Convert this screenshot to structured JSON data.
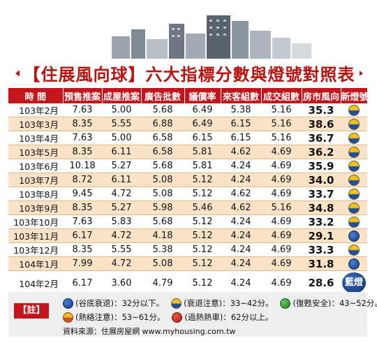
{
  "banner": {
    "title": "【住展風向球】六大指標分數與燈號對照表"
  },
  "chart_data": {
    "type": "table",
    "columns": [
      "時 間",
      "預售推案",
      "成屋推案",
      "廣告批數",
      "議價率",
      "來客組數",
      "成交組數",
      "房市風向",
      "新燈號"
    ],
    "rows": [
      {
        "date": "103年2月",
        "values": [
          "7.63",
          "5.00",
          "5.68",
          "6.49",
          "5.38",
          "5.16",
          "35.3"
        ],
        "light": "yellow-blue"
      },
      {
        "date": "103年3月",
        "values": [
          "8.35",
          "5.55",
          "6.88",
          "6.49",
          "6.15",
          "5.16",
          "38.6"
        ],
        "light": "yellow-blue"
      },
      {
        "date": "103年4月",
        "values": [
          "7.63",
          "5.00",
          "6.58",
          "6.15",
          "6.15",
          "5.16",
          "36.7"
        ],
        "light": "yellow-blue"
      },
      {
        "date": "103年5月",
        "values": [
          "8.35",
          "6.11",
          "6.58",
          "5.81",
          "4.62",
          "4.69",
          "36.2"
        ],
        "light": "yellow-blue"
      },
      {
        "date": "103年6月",
        "values": [
          "10.18",
          "5.27",
          "5.68",
          "5.81",
          "4.24",
          "4.69",
          "35.9"
        ],
        "light": "yellow-blue"
      },
      {
        "date": "103年7月",
        "values": [
          "8.72",
          "6.11",
          "5.08",
          "5.12",
          "4.24",
          "4.69",
          "34.0"
        ],
        "light": "yellow-blue"
      },
      {
        "date": "103年8月",
        "values": [
          "9.45",
          "4.72",
          "5.08",
          "5.12",
          "4.62",
          "4.69",
          "33.7"
        ],
        "light": "yellow-blue"
      },
      {
        "date": "103年9月",
        "values": [
          "8.35",
          "5.27",
          "5.98",
          "5.46",
          "4.62",
          "5.16",
          "34.8"
        ],
        "light": "yellow-blue"
      },
      {
        "date": "103年10月",
        "values": [
          "7.63",
          "5.83",
          "5.68",
          "5.12",
          "4.24",
          "4.69",
          "33.2"
        ],
        "light": "yellow-blue"
      },
      {
        "date": "103年11月",
        "values": [
          "6.17",
          "4.72",
          "4.18",
          "5.12",
          "4.24",
          "4.69",
          "29.1"
        ],
        "light": "blue"
      },
      {
        "date": "103年12月",
        "values": [
          "8.35",
          "5.55",
          "5.38",
          "5.12",
          "4.24",
          "4.69",
          "33.3"
        ],
        "light": "yellow-blue"
      },
      {
        "date": "104年1月",
        "values": [
          "7.99",
          "4.72",
          "5.08",
          "5.12",
          "4.24",
          "4.69",
          "31.8"
        ],
        "light": "blue"
      },
      {
        "date": "104年2月",
        "values": [
          "6.17",
          "3.60",
          "4.79",
          "5.12",
          "4.24",
          "4.69",
          "28.6"
        ],
        "light": "blue",
        "badge": "藍燈"
      }
    ]
  },
  "note": {
    "tag": "【註】",
    "legend": [
      {
        "light": "blue",
        "text": "(谷底衰退)：32分以下。"
      },
      {
        "light": "yellow-blue",
        "text": "(衰退注意)：33~42分。"
      },
      {
        "light": "green",
        "text": "(復甦安全)：43~52分。"
      },
      {
        "light": "yellow-red",
        "text": "(熱絡注意)：53~61分。"
      },
      {
        "light": "red",
        "text": "(過熱熱車)：62分以上。"
      }
    ],
    "source": "資料來源：住展房屋網 www.myhousing.com.tw"
  }
}
